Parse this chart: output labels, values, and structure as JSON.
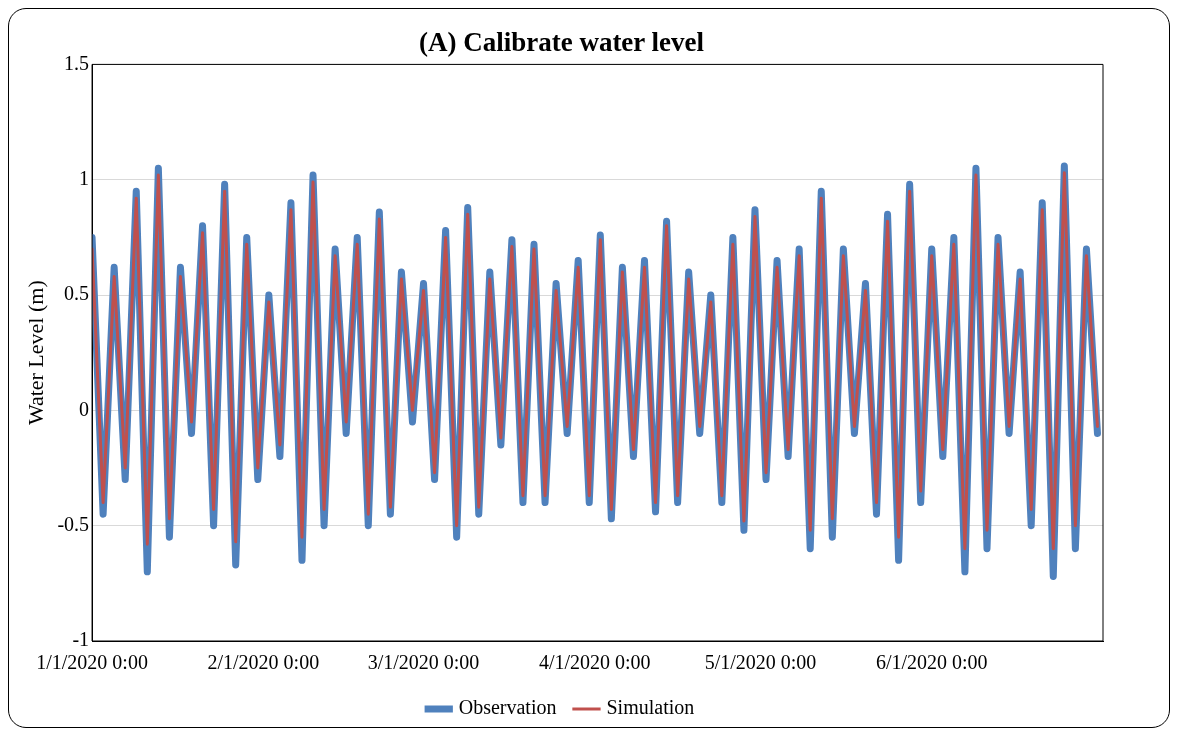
{
  "chart_data": {
    "type": "line",
    "title": "(A) Calibrate water level",
    "ylabel": "Water Level (m)",
    "x": [
      "2020-01-01",
      "2020-01-03",
      "2020-01-05",
      "2020-01-07",
      "2020-01-09",
      "2020-01-11",
      "2020-01-13",
      "2020-01-15",
      "2020-01-17",
      "2020-01-19",
      "2020-01-21",
      "2020-01-23",
      "2020-01-25",
      "2020-01-27",
      "2020-01-29",
      "2020-01-31",
      "2020-02-02",
      "2020-02-04",
      "2020-02-06",
      "2020-02-08",
      "2020-02-10",
      "2020-02-12",
      "2020-02-14",
      "2020-02-16",
      "2020-02-18",
      "2020-02-20",
      "2020-02-22",
      "2020-02-24",
      "2020-02-26",
      "2020-02-28",
      "2020-03-01",
      "2020-03-03",
      "2020-03-05",
      "2020-03-07",
      "2020-03-09",
      "2020-03-11",
      "2020-03-13",
      "2020-03-15",
      "2020-03-17",
      "2020-03-19",
      "2020-03-21",
      "2020-03-23",
      "2020-03-25",
      "2020-03-27",
      "2020-03-29",
      "2020-03-31",
      "2020-04-02",
      "2020-04-04",
      "2020-04-06",
      "2020-04-08",
      "2020-04-10",
      "2020-04-12",
      "2020-04-14",
      "2020-04-16",
      "2020-04-18",
      "2020-04-20",
      "2020-04-22",
      "2020-04-24",
      "2020-04-26",
      "2020-04-28",
      "2020-04-30",
      "2020-05-02",
      "2020-05-04",
      "2020-05-06",
      "2020-05-08",
      "2020-05-10",
      "2020-05-12",
      "2020-05-14",
      "2020-05-16",
      "2020-05-18",
      "2020-05-20",
      "2020-05-22",
      "2020-05-24",
      "2020-05-26",
      "2020-05-28",
      "2020-05-30",
      "2020-06-01",
      "2020-06-03",
      "2020-06-05",
      "2020-06-07",
      "2020-06-09",
      "2020-06-11",
      "2020-06-13",
      "2020-06-15",
      "2020-06-17",
      "2020-06-19",
      "2020-06-21",
      "2020-06-23",
      "2020-06-25",
      "2020-06-27",
      "2020-06-29",
      "2020-07-01"
    ],
    "series": [
      {
        "name": "Observation",
        "color": "#4f81bd",
        "values": [
          0.75,
          -0.45,
          0.62,
          -0.3,
          0.95,
          -0.7,
          1.05,
          -0.55,
          0.62,
          -0.1,
          0.8,
          -0.5,
          0.98,
          -0.67,
          0.75,
          -0.3,
          0.5,
          -0.2,
          0.9,
          -0.65,
          1.02,
          -0.5,
          0.7,
          -0.1,
          0.75,
          -0.5,
          0.86,
          -0.45,
          0.6,
          -0.05,
          0.55,
          -0.3,
          0.78,
          -0.55,
          0.88,
          -0.45,
          0.6,
          -0.15,
          0.74,
          -0.4,
          0.72,
          -0.4,
          0.55,
          -0.1,
          0.65,
          -0.4,
          0.76,
          -0.47,
          0.62,
          -0.2,
          0.65,
          -0.44,
          0.82,
          -0.4,
          0.6,
          -0.1,
          0.5,
          -0.4,
          0.75,
          -0.52,
          0.87,
          -0.3,
          0.65,
          -0.2,
          0.7,
          -0.6,
          0.95,
          -0.55,
          0.7,
          -0.1,
          0.55,
          -0.45,
          0.85,
          -0.65,
          0.98,
          -0.4,
          0.7,
          -0.2,
          0.75,
          -0.7,
          1.05,
          -0.6,
          0.75,
          -0.1,
          0.6,
          -0.5,
          0.9,
          -0.72,
          1.06,
          -0.6,
          0.7,
          -0.1
        ]
      },
      {
        "name": "Simulation",
        "color": "#c0504d",
        "values": [
          0.7,
          -0.4,
          0.58,
          -0.25,
          0.92,
          -0.58,
          1.02,
          -0.47,
          0.58,
          -0.05,
          0.77,
          -0.43,
          0.95,
          -0.57,
          0.72,
          -0.25,
          0.47,
          -0.15,
          0.87,
          -0.55,
          0.99,
          -0.43,
          0.67,
          -0.05,
          0.72,
          -0.45,
          0.83,
          -0.42,
          0.57,
          0.0,
          0.52,
          -0.27,
          0.75,
          -0.5,
          0.85,
          -0.42,
          0.57,
          -0.12,
          0.71,
          -0.37,
          0.7,
          -0.37,
          0.52,
          -0.07,
          0.62,
          -0.37,
          0.74,
          -0.43,
          0.6,
          -0.17,
          0.62,
          -0.4,
          0.8,
          -0.37,
          0.57,
          -0.07,
          0.47,
          -0.37,
          0.72,
          -0.48,
          0.84,
          -0.27,
          0.62,
          -0.17,
          0.67,
          -0.52,
          0.92,
          -0.47,
          0.67,
          -0.07,
          0.52,
          -0.4,
          0.82,
          -0.55,
          0.95,
          -0.35,
          0.67,
          -0.17,
          0.72,
          -0.6,
          1.02,
          -0.52,
          0.72,
          -0.07,
          0.57,
          -0.43,
          0.87,
          -0.6,
          1.03,
          -0.5,
          0.67,
          -0.07
        ]
      }
    ],
    "xlim": [
      "2020-01-01",
      "2020-07-02"
    ],
    "xticks": [
      {
        "value": "2020-01-01",
        "label": "1/1/2020 0:00"
      },
      {
        "value": "2020-02-01",
        "label": "2/1/2020 0:00"
      },
      {
        "value": "2020-03-01",
        "label": "3/1/2020 0:00"
      },
      {
        "value": "2020-04-01",
        "label": "4/1/2020 0:00"
      },
      {
        "value": "2020-05-01",
        "label": "5/1/2020 0:00"
      },
      {
        "value": "2020-06-01",
        "label": "6/1/2020 0:00"
      }
    ],
    "ylim": [
      -1,
      1.5
    ],
    "yticks": [
      -1,
      -0.5,
      0,
      0.5,
      1,
      1.5
    ],
    "grid": "y",
    "legend": "bottom",
    "marker": "none",
    "line_style": "solid"
  }
}
